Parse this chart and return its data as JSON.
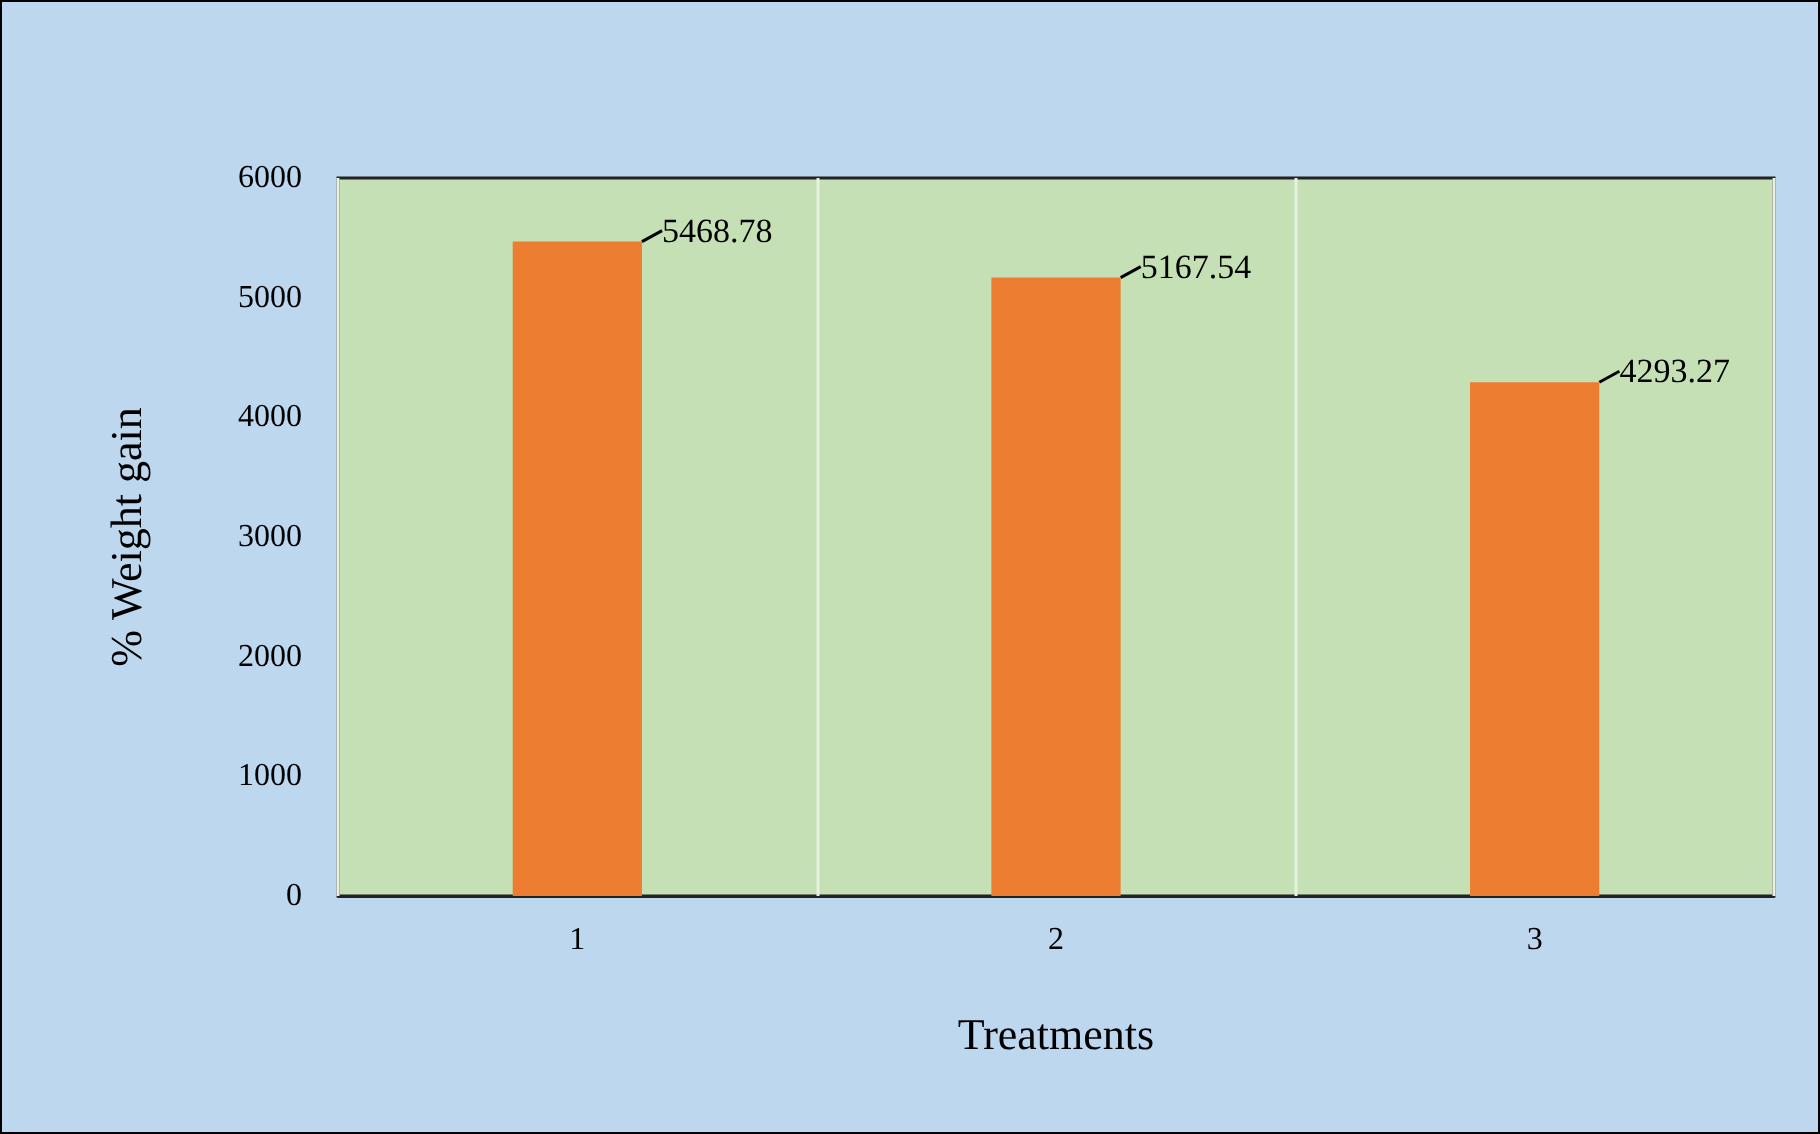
{
  "chart_data": {
    "type": "bar",
    "xlabel": "Treatments",
    "ylabel": "% Weight gain",
    "categories": [
      "1",
      "2",
      "3"
    ],
    "values": [
      5468.78,
      5167.54,
      4293.27
    ],
    "color": "#ed7d31",
    "ylim": [
      0,
      6000
    ],
    "yticks": [
      0,
      1000,
      2000,
      3000,
      4000,
      5000,
      6000
    ],
    "grid": "x",
    "data_labels": true
  }
}
